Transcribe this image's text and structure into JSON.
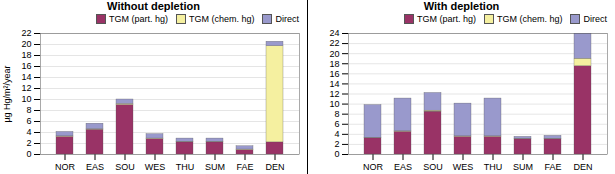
{
  "chart_data": [
    {
      "type": "bar",
      "title": "Without depletion",
      "ylabel": "µg Hg/m²/year",
      "categories": [
        "NOR",
        "EAS",
        "SOU",
        "WES",
        "THU",
        "SUM",
        "FAE",
        "DEN"
      ],
      "series": [
        {
          "name": "TGM (part. hg)",
          "color": "#993366",
          "values": [
            3.2,
            4.5,
            9.0,
            2.8,
            2.2,
            2.2,
            0.8,
            2.2
          ]
        },
        {
          "name": "TGM (chem. hg)",
          "color": "#f5f0a0",
          "values": [
            0.1,
            0.1,
            0.2,
            0.1,
            0.1,
            0.1,
            0.1,
            17.5
          ]
        },
        {
          "name": "Direct",
          "color": "#9999cc",
          "values": [
            0.8,
            1.0,
            0.8,
            0.8,
            0.6,
            0.6,
            0.6,
            0.8
          ]
        }
      ],
      "ylim": [
        0,
        22
      ],
      "yticks": [
        0,
        2,
        4,
        6,
        8,
        10,
        12,
        14,
        16,
        18,
        20,
        22
      ],
      "grid": true,
      "stacked": true,
      "legend": "upper right"
    },
    {
      "type": "bar",
      "title": "With depletion",
      "categories": [
        "NOR",
        "EAS",
        "SOU",
        "WES",
        "THU",
        "SUM",
        "FAE",
        "DEN"
      ],
      "series": [
        {
          "name": "TGM (part. hg)",
          "color": "#993366",
          "values": [
            3.2,
            4.5,
            8.5,
            3.5,
            3.5,
            3.0,
            3.0,
            17.5
          ]
        },
        {
          "name": "TGM (chem. hg)",
          "color": "#f5f0a0",
          "values": [
            0.1,
            0.1,
            0.2,
            0.1,
            0.1,
            0.1,
            0.1,
            1.5
          ]
        },
        {
          "name": "Direct",
          "color": "#9999cc",
          "values": [
            6.5,
            6.5,
            3.5,
            6.5,
            7.5,
            0.4,
            0.6,
            5.0
          ]
        }
      ],
      "ylim": [
        0,
        24
      ],
      "yticks": [
        0,
        2,
        4,
        6,
        8,
        10,
        12,
        14,
        16,
        18,
        20,
        22,
        24
      ],
      "grid": true,
      "stacked": true,
      "legend": "upper right"
    }
  ]
}
